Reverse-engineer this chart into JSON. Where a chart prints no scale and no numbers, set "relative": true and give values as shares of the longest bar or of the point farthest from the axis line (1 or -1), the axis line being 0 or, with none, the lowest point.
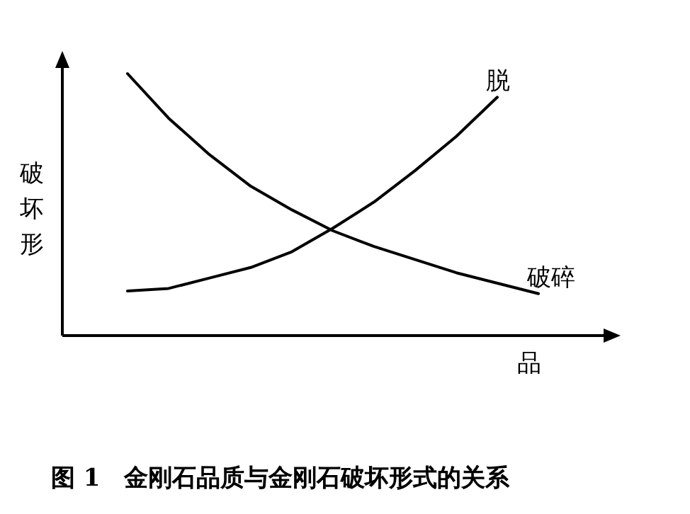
{
  "chart_data": {
    "type": "line",
    "relative": true,
    "title": "图 1　金刚石品质与金刚石破坏形式的关系",
    "xlabel": "品",
    "ylabel": "破坏形",
    "categories": [
      null,
      null,
      null,
      null,
      null,
      null,
      null,
      null,
      null,
      null,
      null
    ],
    "series": [
      {
        "name": "破碎",
        "color": "#000000",
        "values": [
          1,
          0.83,
          0.69,
          0.57,
          0.48,
          0.4,
          0.34,
          0.29,
          0.24,
          0.2,
          0.16
        ]
      },
      {
        "name": "脱",
        "color": "#000000",
        "values": [
          0.17,
          0.18,
          0.22,
          0.26,
          0.32,
          0.41,
          0.51,
          0.63,
          0.76,
          0.91,
          null
        ]
      }
    ]
  }
}
